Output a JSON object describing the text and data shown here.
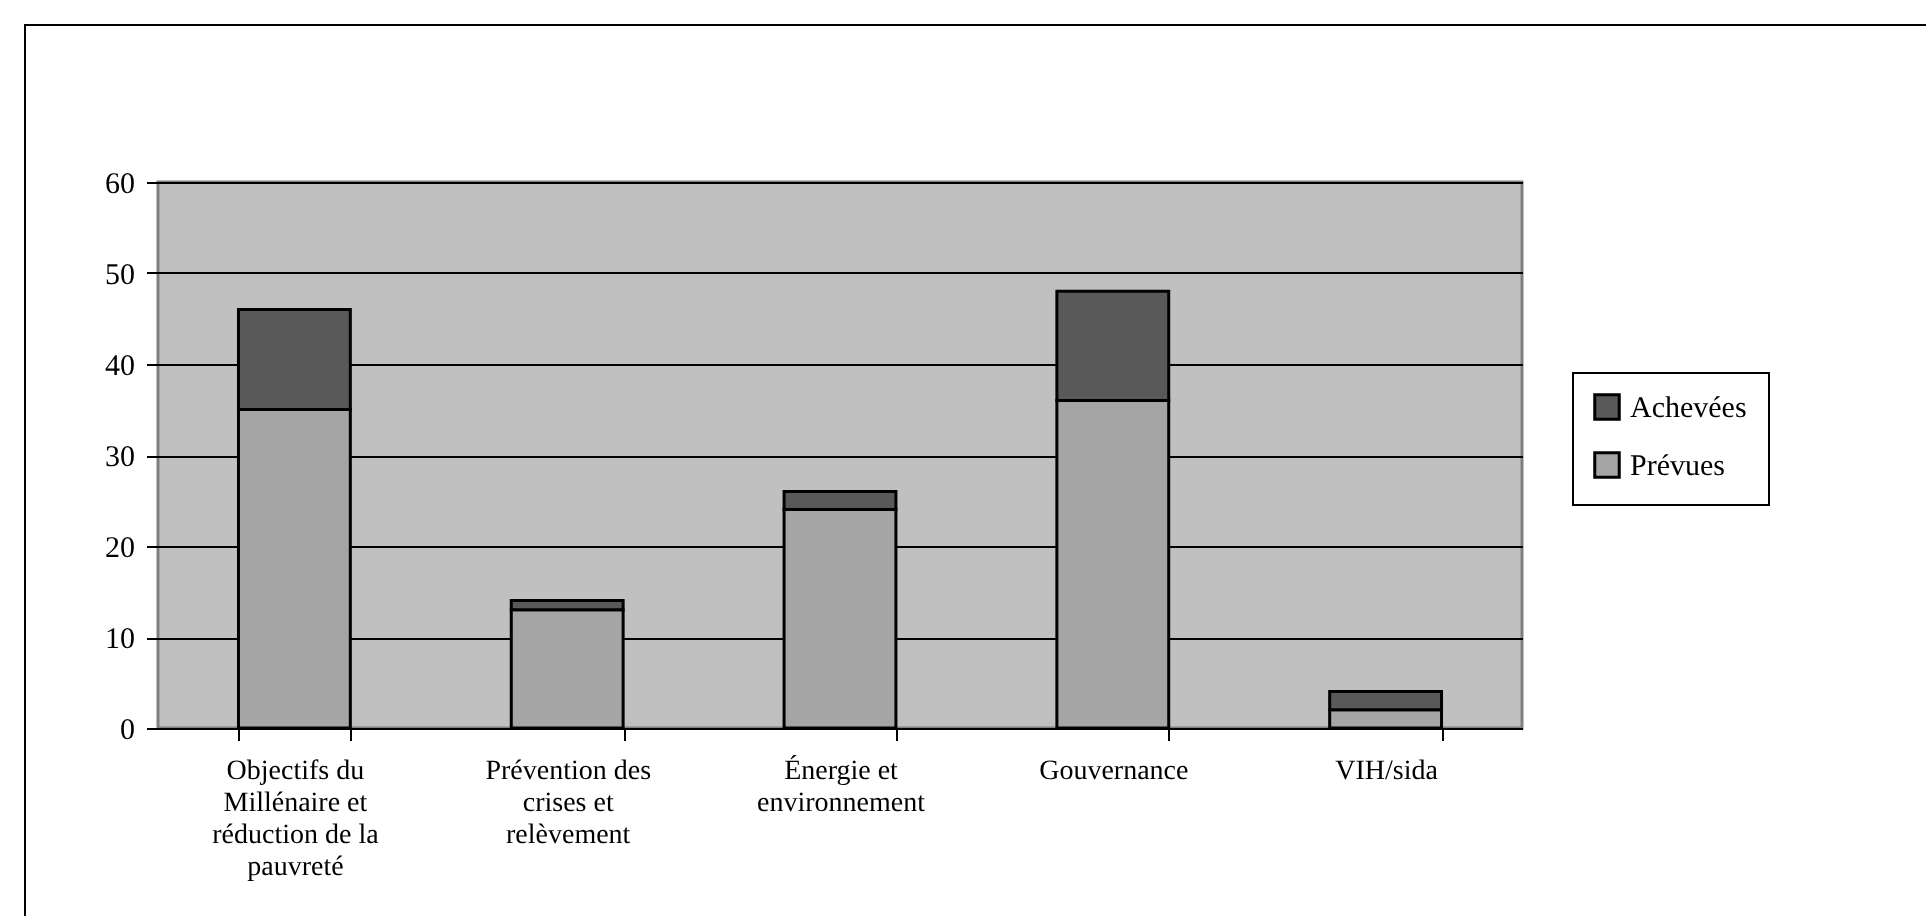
{
  "chart_data": {
    "type": "bar",
    "stacked": true,
    "categories": [
      "Objectifs du Millénaire et réduction de la pauvreté",
      "Prévention des crises et relèvement",
      "Énergie et environnement",
      "Gouvernance",
      "VIH/sida"
    ],
    "series": [
      {
        "name": "Prévues",
        "color": "#a5a5a5",
        "values": [
          35,
          13,
          24,
          36,
          2
        ]
      },
      {
        "name": "Achevées",
        "color": "#595959",
        "values": [
          11,
          1,
          2,
          12,
          2
        ]
      }
    ],
    "ylim": [
      0,
      60
    ],
    "yticks": [
      0,
      10,
      20,
      30,
      40,
      50,
      60
    ],
    "grid": "y",
    "legend": "right"
  }
}
